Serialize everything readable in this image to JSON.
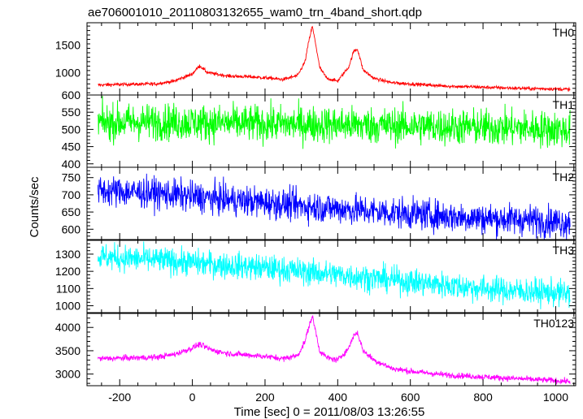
{
  "chart_data": {
    "type": "line",
    "title": "ae706001010_20110803132655_wam0_trn_4band_short.qdp",
    "xlabel": "Time [sec] 0 = 2011/08/03 13:26:55",
    "ylabel": "Counts/sec",
    "xlim": [
      -290,
      1055
    ],
    "x_ticks": [
      -200,
      0,
      200,
      400,
      600,
      800,
      1000
    ],
    "grid": false,
    "panels": [
      {
        "name": "TH0",
        "color": "#ff0000",
        "ylim": [
          600,
          1900
        ],
        "y_ticks": [
          600,
          1000,
          1500
        ],
        "x": [
          -260,
          -200,
          -100,
          -50,
          0,
          20,
          40,
          60,
          80,
          100,
          150,
          200,
          250,
          290,
          310,
          320,
          330,
          340,
          350,
          370,
          400,
          430,
          445,
          455,
          470,
          500,
          550,
          600,
          700,
          800,
          900,
          1000,
          1040
        ],
        "values": [
          780,
          790,
          800,
          850,
          980,
          1130,
          1010,
          980,
          960,
          940,
          930,
          910,
          880,
          950,
          1200,
          1550,
          1840,
          1500,
          1100,
          900,
          850,
          1100,
          1400,
          1420,
          1050,
          900,
          820,
          800,
          760,
          740,
          720,
          710,
          700
        ]
      },
      {
        "name": "TH1",
        "color": "#00ff00",
        "ylim": [
          390,
          600
        ],
        "y_ticks": [
          400,
          450,
          500,
          550
        ],
        "x": [
          -260,
          -100,
          0,
          100,
          200,
          300,
          400,
          500,
          600,
          700,
          800,
          900,
          1000,
          1040
        ],
        "values": [
          520,
          522,
          520,
          518,
          516,
          515,
          514,
          512,
          510,
          508,
          506,
          504,
          500,
          498
        ]
      },
      {
        "name": "TH2",
        "color": "#0000ff",
        "ylim": [
          570,
          780
        ],
        "y_ticks": [
          600,
          650,
          700,
          750
        ],
        "x": [
          -260,
          -100,
          0,
          100,
          200,
          300,
          400,
          500,
          600,
          700,
          800,
          900,
          1000,
          1040
        ],
        "values": [
          712,
          705,
          695,
          685,
          678,
          668,
          660,
          652,
          645,
          638,
          632,
          628,
          622,
          620
        ]
      },
      {
        "name": "TH3",
        "color": "#00ffff",
        "ylim": [
          960,
          1380
        ],
        "y_ticks": [
          1000,
          1100,
          1200,
          1300
        ],
        "x": [
          -260,
          -100,
          0,
          100,
          200,
          300,
          400,
          500,
          600,
          700,
          800,
          900,
          1000,
          1040
        ],
        "values": [
          1285,
          1265,
          1250,
          1235,
          1220,
          1200,
          1180,
          1160,
          1140,
          1120,
          1100,
          1085,
          1075,
          1070
        ]
      },
      {
        "name": "TH0123",
        "color": "#ff00ff",
        "ylim": [
          2750,
          4300
        ],
        "y_ticks": [
          3000,
          3500,
          4000
        ],
        "x": [
          -260,
          -200,
          -100,
          -50,
          0,
          20,
          40,
          60,
          80,
          100,
          150,
          200,
          250,
          290,
          310,
          320,
          330,
          340,
          350,
          370,
          400,
          430,
          445,
          455,
          470,
          500,
          550,
          600,
          700,
          800,
          900,
          1000,
          1040
        ],
        "values": [
          3330,
          3340,
          3360,
          3420,
          3560,
          3640,
          3560,
          3500,
          3470,
          3440,
          3410,
          3380,
          3330,
          3400,
          3700,
          4000,
          4240,
          3900,
          3500,
          3350,
          3300,
          3550,
          3850,
          3880,
          3500,
          3300,
          3120,
          3060,
          2980,
          2940,
          2900,
          2860,
          2840
        ]
      }
    ]
  }
}
